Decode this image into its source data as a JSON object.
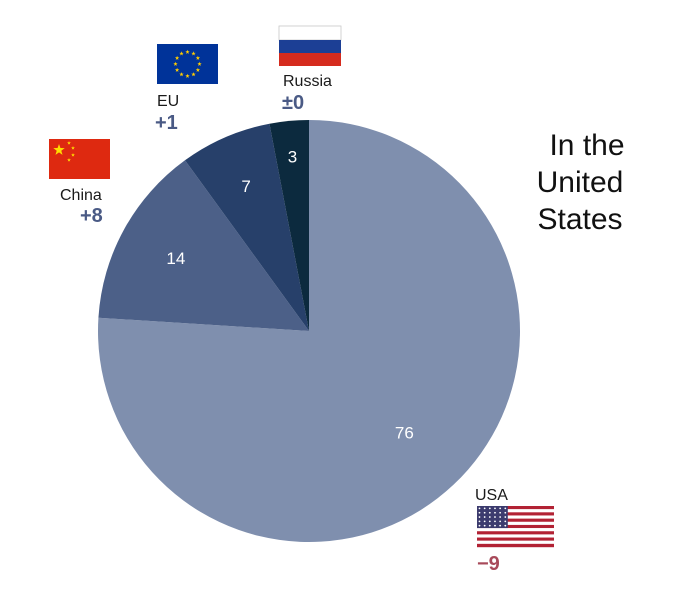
{
  "chart_data": {
    "type": "pie",
    "title": "In the United States",
    "title_lines": [
      "In the",
      "United",
      "States"
    ],
    "slices": [
      {
        "label": "USA",
        "value": 76,
        "change": "−9",
        "change_color": "#a84a5a",
        "color": "#7f8fae",
        "flag": "usa"
      },
      {
        "label": "China",
        "value": 14,
        "change": "+8",
        "change_color": "#4a5a85",
        "color": "#4c6088",
        "flag": "china"
      },
      {
        "label": "EU",
        "value": 7,
        "change": "+1",
        "change_color": "#4a5a85",
        "color": "#27406a",
        "flag": "eu"
      },
      {
        "label": "Russia",
        "value": 3,
        "change": "±0",
        "change_color": "#4a5a85",
        "color": "#0c2a3e",
        "flag": "russia"
      }
    ],
    "legend": "none",
    "grid": false
  }
}
